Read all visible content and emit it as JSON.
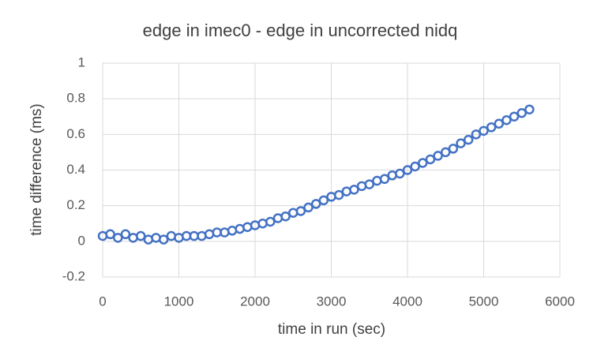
{
  "chart_data": {
    "type": "scatter",
    "title": "edge in imec0 - edge in uncorrected nidq",
    "x_label": "time in run (sec)",
    "y_label": "time difference (ms)",
    "color": "#4472c4",
    "grid": true,
    "xlim": [
      0,
      6000
    ],
    "xticks": [
      0,
      1000,
      2000,
      3000,
      4000,
      5000,
      6000
    ],
    "ylim": [
      -0.2,
      1
    ],
    "yticks": [
      -0.2,
      0,
      0.2,
      0.4,
      0.6,
      0.8,
      1
    ],
    "x": [
      0,
      100,
      200,
      300,
      400,
      500,
      600,
      700,
      800,
      900,
      1000,
      1100,
      1200,
      1300,
      1400,
      1500,
      1600,
      1700,
      1800,
      1900,
      2000,
      2100,
      2200,
      2300,
      2400,
      2500,
      2600,
      2700,
      2800,
      2900,
      3000,
      3100,
      3200,
      3300,
      3400,
      3500,
      3600,
      3700,
      3800,
      3900,
      4000,
      4100,
      4200,
      4300,
      4400,
      4500,
      4600,
      4700,
      4800,
      4900,
      5000,
      5100,
      5200,
      5300,
      5400,
      5500,
      5600
    ],
    "values": [
      0.03,
      0.04,
      0.02,
      0.04,
      0.02,
      0.03,
      0.01,
      0.02,
      0.01,
      0.03,
      0.02,
      0.03,
      0.03,
      0.03,
      0.04,
      0.05,
      0.05,
      0.06,
      0.07,
      0.08,
      0.09,
      0.1,
      0.11,
      0.13,
      0.14,
      0.16,
      0.17,
      0.19,
      0.21,
      0.23,
      0.25,
      0.26,
      0.28,
      0.29,
      0.31,
      0.32,
      0.34,
      0.35,
      0.37,
      0.38,
      0.4,
      0.42,
      0.44,
      0.46,
      0.48,
      0.5,
      0.52,
      0.55,
      0.57,
      0.6,
      0.62,
      0.64,
      0.66,
      0.68,
      0.7,
      0.72,
      0.74
    ]
  }
}
